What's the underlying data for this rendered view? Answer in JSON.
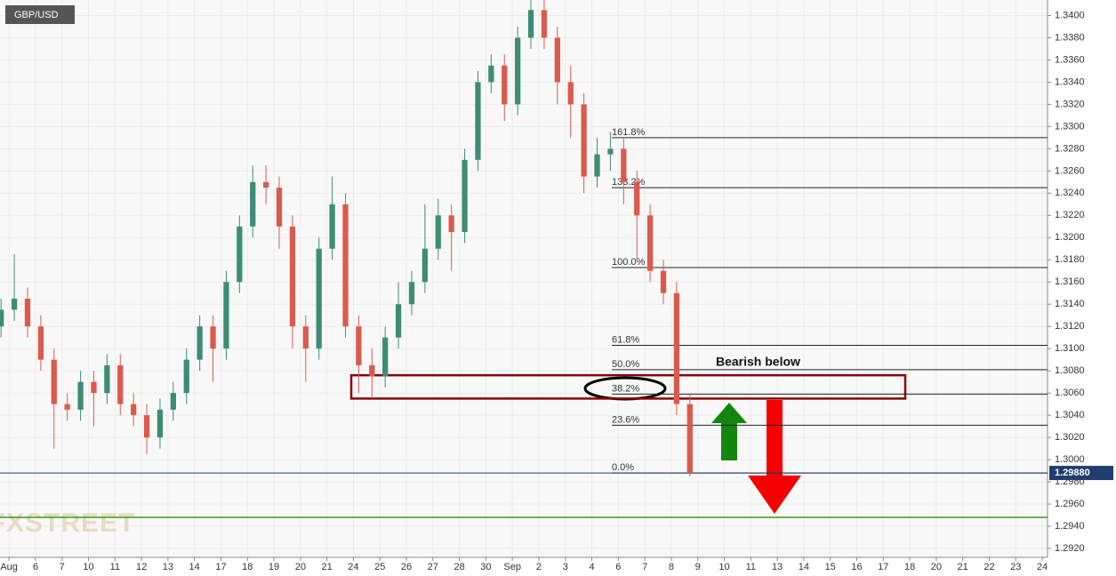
{
  "chart_data": {
    "type": "candlestick",
    "title": "GBP/USD",
    "watermark": "FXSTREET",
    "annotation": "Bearish below",
    "up_color": "#3d8c75",
    "down_color": "#db5a4c",
    "grid": true,
    "x": [
      -0.3,
      0.2,
      0.7,
      1.2,
      1.7,
      2.2,
      2.7,
      3.2,
      3.7,
      4.2,
      4.7,
      5.2,
      5.7,
      6.2,
      6.7,
      7.2,
      7.7,
      8.2,
      8.7,
      9.2,
      9.7,
      10.2,
      10.7,
      11.2,
      11.7,
      12.2,
      12.7,
      13.2,
      13.7,
      14.2,
      14.7,
      15.2,
      15.7,
      16.2,
      16.7,
      17.2,
      17.7,
      18.2,
      18.7,
      19.2,
      19.7,
      20.2,
      20.7,
      21.2,
      21.7,
      22.2,
      22.7,
      23.2,
      23.7,
      24.2,
      24.7,
      25.2,
      25.7
    ],
    "open": [
      1.312,
      1.3135,
      1.3145,
      1.312,
      1.309,
      1.305,
      1.3045,
      1.307,
      1.306,
      1.3085,
      1.305,
      1.304,
      1.302,
      1.3045,
      1.306,
      1.309,
      1.312,
      1.31,
      1.316,
      1.321,
      1.325,
      1.3245,
      1.321,
      1.312,
      1.31,
      1.319,
      1.323,
      1.312,
      1.3085,
      1.3075,
      1.311,
      1.314,
      1.316,
      1.319,
      1.322,
      1.3205,
      1.327,
      1.334,
      1.3355,
      1.332,
      1.338,
      1.3405,
      1.338,
      1.334,
      1.332,
      1.3255,
      1.3275,
      1.328,
      1.325,
      1.322,
      1.317,
      1.315,
      1.305
    ],
    "high": [
      1.3145,
      1.3185,
      1.3155,
      1.313,
      1.31,
      1.306,
      1.308,
      1.308,
      1.3095,
      1.3095,
      1.306,
      1.305,
      1.3055,
      1.307,
      1.31,
      1.313,
      1.313,
      1.317,
      1.322,
      1.3265,
      1.3265,
      1.3255,
      1.322,
      1.313,
      1.32,
      1.3255,
      1.324,
      1.313,
      1.31,
      1.312,
      1.316,
      1.317,
      1.323,
      1.3235,
      1.323,
      1.328,
      1.335,
      1.3365,
      1.3365,
      1.339,
      1.342,
      1.3415,
      1.339,
      1.3355,
      1.333,
      1.329,
      1.3295,
      1.329,
      1.326,
      1.323,
      1.318,
      1.316,
      1.306
    ],
    "low": [
      1.311,
      1.3125,
      1.311,
      1.308,
      1.301,
      1.3035,
      1.3035,
      1.303,
      1.305,
      1.304,
      1.303,
      1.3005,
      1.301,
      1.3035,
      1.305,
      1.308,
      1.307,
      1.309,
      1.315,
      1.32,
      1.323,
      1.319,
      1.31,
      1.307,
      1.309,
      1.318,
      1.311,
      1.306,
      1.3055,
      1.3065,
      1.31,
      1.313,
      1.315,
      1.318,
      1.317,
      1.3195,
      1.326,
      1.333,
      1.3305,
      1.331,
      1.337,
      1.337,
      1.332,
      1.329,
      1.324,
      1.3245,
      1.326,
      1.323,
      1.318,
      1.316,
      1.314,
      1.304,
      1.2985
    ],
    "close": [
      1.3135,
      1.3145,
      1.312,
      1.309,
      1.305,
      1.3045,
      1.307,
      1.306,
      1.3085,
      1.305,
      1.304,
      1.302,
      1.3045,
      1.306,
      1.309,
      1.312,
      1.31,
      1.316,
      1.321,
      1.325,
      1.3245,
      1.321,
      1.312,
      1.31,
      1.319,
      1.323,
      1.312,
      1.3085,
      1.3075,
      1.311,
      1.314,
      1.316,
      1.319,
      1.322,
      1.3205,
      1.327,
      1.334,
      1.3355,
      1.332,
      1.338,
      1.3405,
      1.338,
      1.334,
      1.332,
      1.3255,
      1.3275,
      1.328,
      1.325,
      1.322,
      1.317,
      1.315,
      1.305,
      1.2988
    ],
    "xlim": [
      -0.34,
      39.2
    ],
    "xticks": [
      {
        "value": 0,
        "label": "Aug"
      },
      {
        "value": 1,
        "label": "6"
      },
      {
        "value": 2,
        "label": "7"
      },
      {
        "value": 3,
        "label": "10"
      },
      {
        "value": 4,
        "label": "11"
      },
      {
        "value": 5,
        "label": "12"
      },
      {
        "value": 6,
        "label": "13"
      },
      {
        "value": 7,
        "label": "14"
      },
      {
        "value": 8,
        "label": "17"
      },
      {
        "value": 9,
        "label": "18"
      },
      {
        "value": 10,
        "label": "19"
      },
      {
        "value": 11,
        "label": "20"
      },
      {
        "value": 12,
        "label": "21"
      },
      {
        "value": 13,
        "label": "24"
      },
      {
        "value": 14,
        "label": "25"
      },
      {
        "value": 15,
        "label": "26"
      },
      {
        "value": 16,
        "label": "27"
      },
      {
        "value": 17,
        "label": "28"
      },
      {
        "value": 18,
        "label": "30"
      },
      {
        "value": 19,
        "label": "Sep"
      },
      {
        "value": 20,
        "label": "2"
      },
      {
        "value": 21,
        "label": "3"
      },
      {
        "value": 22,
        "label": "4"
      },
      {
        "value": 23,
        "label": "6"
      },
      {
        "value": 24,
        "label": "7"
      },
      {
        "value": 25,
        "label": "8"
      },
      {
        "value": 26,
        "label": "9"
      },
      {
        "value": 27,
        "label": "10"
      },
      {
        "value": 28,
        "label": "11"
      },
      {
        "value": 29,
        "label": "13"
      },
      {
        "value": 30,
        "label": "14"
      },
      {
        "value": 31,
        "label": "15"
      },
      {
        "value": 32,
        "label": "16"
      },
      {
        "value": 33,
        "label": "17"
      },
      {
        "value": 34,
        "label": "18"
      },
      {
        "value": 35,
        "label": "20"
      },
      {
        "value": 36,
        "label": "21"
      },
      {
        "value": 37,
        "label": "22"
      },
      {
        "value": 38,
        "label": "23"
      },
      {
        "value": 39,
        "label": "24"
      }
    ],
    "ylim": [
      1.2912,
      1.3414
    ],
    "yticks": [
      {
        "value": 1.292,
        "label": "1.2920"
      },
      {
        "value": 1.294,
        "label": "1.2940"
      },
      {
        "value": 1.296,
        "label": "1.2960"
      },
      {
        "value": 1.298,
        "label": "1.2980"
      },
      {
        "value": 1.3,
        "label": "1.3000"
      },
      {
        "value": 1.302,
        "label": "1.3020"
      },
      {
        "value": 1.304,
        "label": "1.3040"
      },
      {
        "value": 1.306,
        "label": "1.3060"
      },
      {
        "value": 1.308,
        "label": "1.3080"
      },
      {
        "value": 1.31,
        "label": "1.3100"
      },
      {
        "value": 1.312,
        "label": "1.3120"
      },
      {
        "value": 1.314,
        "label": "1.3140"
      },
      {
        "value": 1.316,
        "label": "1.3160"
      },
      {
        "value": 1.318,
        "label": "1.3180"
      },
      {
        "value": 1.32,
        "label": "1.3200"
      },
      {
        "value": 1.322,
        "label": "1.3220"
      },
      {
        "value": 1.324,
        "label": "1.3240"
      },
      {
        "value": 1.326,
        "label": "1.3260"
      },
      {
        "value": 1.328,
        "label": "1.3280"
      },
      {
        "value": 1.33,
        "label": "1.3300"
      },
      {
        "value": 1.332,
        "label": "1.3320"
      },
      {
        "value": 1.334,
        "label": "1.3340"
      },
      {
        "value": 1.336,
        "label": "1.3360"
      },
      {
        "value": 1.338,
        "label": "1.3380"
      },
      {
        "value": 1.34,
        "label": "1.3400"
      }
    ],
    "fib_levels": [
      {
        "value": 1.329,
        "label": "161.8%"
      },
      {
        "value": 1.3245,
        "label": "138.2%"
      },
      {
        "value": 1.3173,
        "label": "100.0%"
      },
      {
        "value": 1.3103,
        "label": "61.8%"
      },
      {
        "value": 1.3081,
        "label": "50.0%"
      },
      {
        "value": 1.3059,
        "label": "38.2%"
      },
      {
        "value": 1.3031,
        "label": "23.6%"
      },
      {
        "value": 1.2988,
        "label": "0.0%"
      }
    ],
    "current_price": {
      "value": 1.2988,
      "label": "1.29880"
    },
    "support": 1.2948,
    "zone": [
      1.3055,
      1.3076
    ]
  }
}
